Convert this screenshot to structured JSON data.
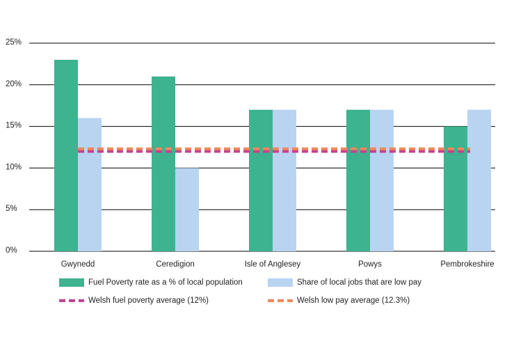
{
  "chart_data": {
    "type": "bar",
    "categories": [
      "Gwynedd",
      "Ceredigion",
      "Isle of Anglesey",
      "Powys",
      "Pembrokeshire"
    ],
    "series": [
      {
        "name": "Fuel Poverty rate as a % of local population",
        "color": "#3db38f",
        "values": [
          23,
          21,
          17,
          17,
          15
        ]
      },
      {
        "name": "Share of local jobs that are low pay",
        "color": "#b8d4f1",
        "values": [
          16,
          10,
          17,
          17,
          17
        ]
      }
    ],
    "reference_lines": [
      {
        "name": "Welsh fuel poverty average (12%)",
        "value": 12,
        "color": "#c2428e"
      },
      {
        "name": "Welsh low pay average (12.3%)",
        "value": 12.3,
        "color": "#f0875a"
      }
    ],
    "ylim": [
      0,
      25
    ],
    "yticks": [
      {
        "value": 0,
        "label": "0%"
      },
      {
        "value": 5,
        "label": "5%"
      },
      {
        "value": 10,
        "label": "10%"
      },
      {
        "value": 15,
        "label": "15%"
      },
      {
        "value": 20,
        "label": "20%"
      },
      {
        "value": 25,
        "label": "25%"
      }
    ],
    "grid": true
  }
}
